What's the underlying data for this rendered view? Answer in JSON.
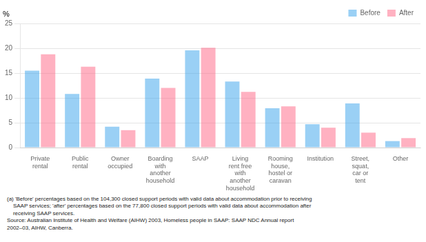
{
  "chart_data": {
    "type": "bar",
    "categories": [
      "Private\nrental",
      "Public\nrental",
      "Owner\noccupied",
      "Boarding\nwith\nanother\nhousehold",
      "SAAP",
      "Living\nrent free\nwith\nanother\nhousehold",
      "Rooming\nhouse,\nhostel or\ncaravan",
      "Institution",
      "Street,\nsquat,\ncar or\ntent",
      "Other"
    ],
    "series": [
      {
        "name": "Before",
        "values": [
          15.5,
          10.8,
          4.2,
          13.9,
          19.6,
          13.3,
          7.9,
          4.7,
          8.9,
          1.3
        ]
      },
      {
        "name": "After",
        "values": [
          18.8,
          16.3,
          3.5,
          12.0,
          20.1,
          11.2,
          8.3,
          4.0,
          3.0,
          1.9
        ]
      }
    ],
    "ylabel": "%",
    "ylim": [
      0,
      25
    ],
    "yticks": [
      0,
      5,
      10,
      15,
      20,
      25
    ],
    "grid": true,
    "legend": "upper right",
    "annotations": [
      "(a) 'Before' percentages based on the 104,300 closed support periods with valid data about accommodation prior to receiving\n    SAAP services; 'after' percentages based on the 77,800 closed support periods with valid data about accommodation after\n    receiving SAAP services.",
      "Source: Australian Institute of Health and Welfare (AIHW) 2003, Homeless people in SAAP: SAAP NDC Annual report",
      "2002–03, AIHW, Canberra."
    ]
  }
}
